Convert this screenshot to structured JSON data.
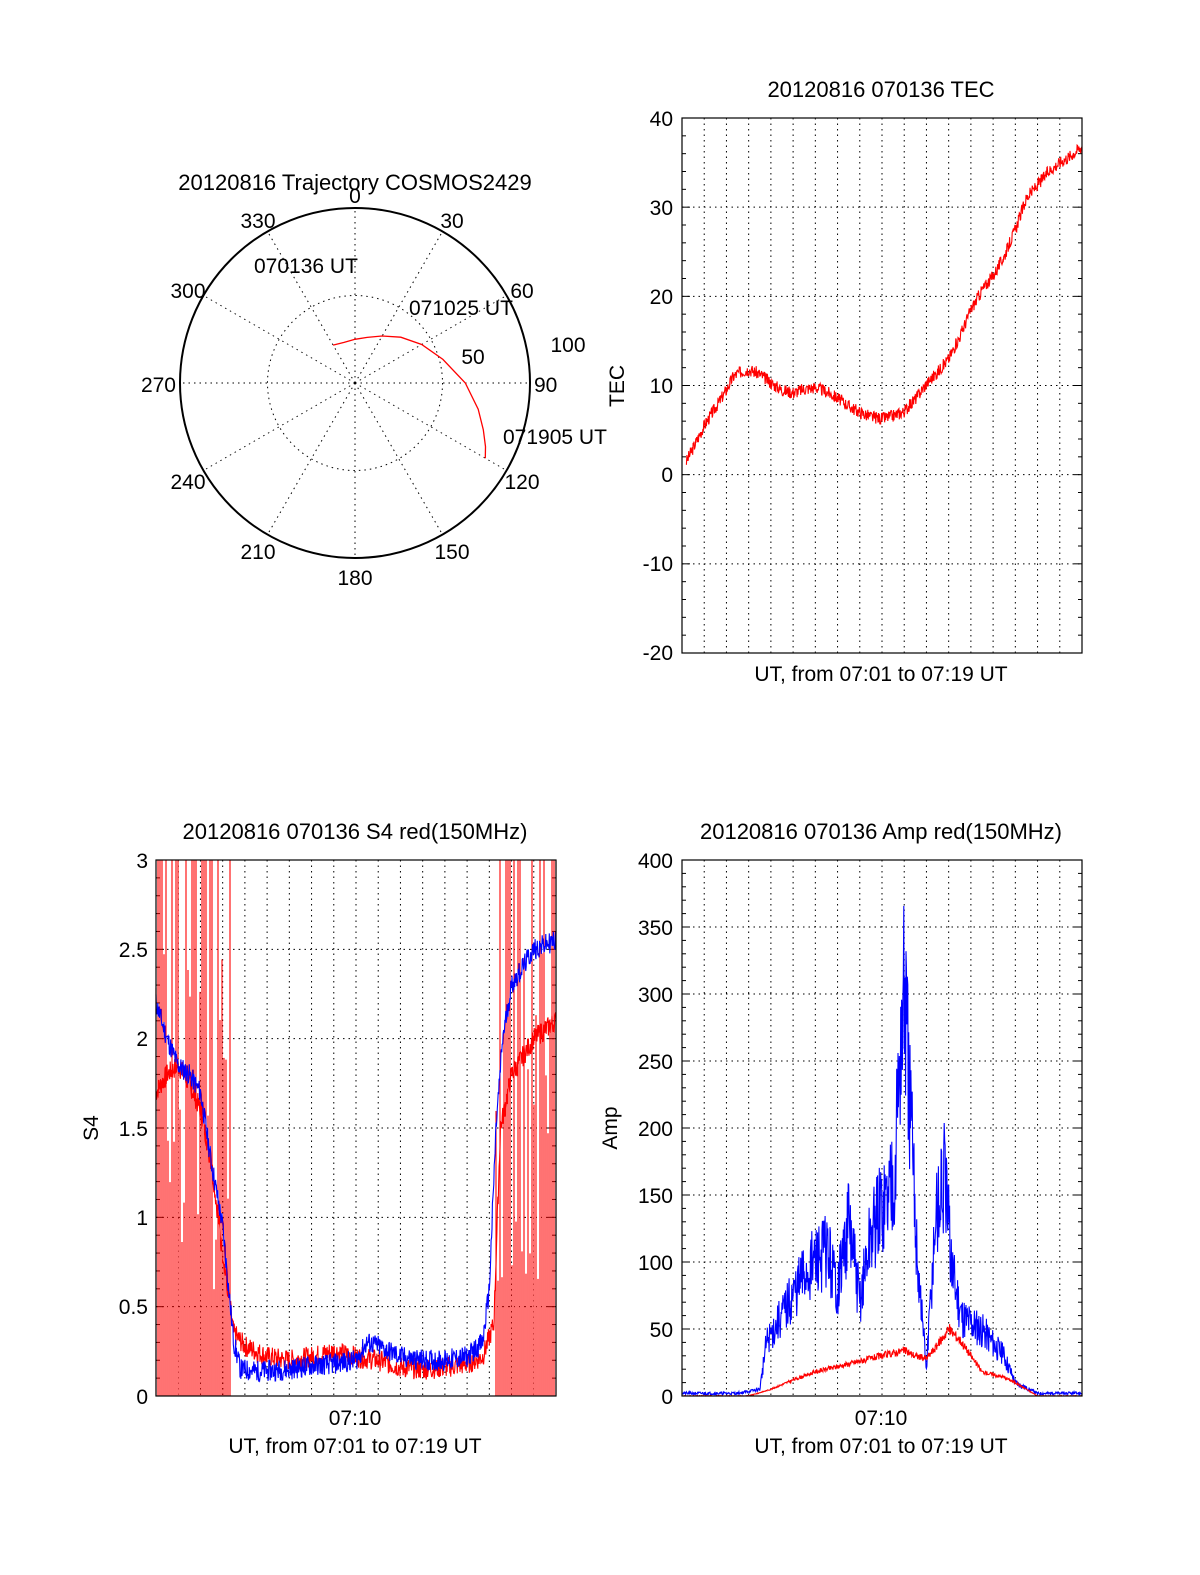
{
  "chart_data": [
    {
      "type": "polar",
      "title": "20120816 Trajectory COSMOS2429",
      "azimuth_labels": [
        "0",
        "30",
        "60",
        "90",
        "120",
        "150",
        "180",
        "210",
        "240",
        "270",
        "300",
        "330"
      ],
      "elevation_labels": [
        "50",
        "100"
      ],
      "time_labels": [
        "070136 UT",
        "071025 UT",
        "071905 UT"
      ],
      "series": [
        {
          "color": "#ff0000",
          "points": [
            [
              330,
              25
            ],
            [
              345,
              24
            ],
            [
              0,
              25
            ],
            [
              15,
              27
            ],
            [
              30,
              31
            ],
            [
              45,
              37
            ],
            [
              60,
              44
            ],
            [
              75,
              52
            ],
            [
              90,
              63
            ],
            [
              102,
              72
            ],
            [
              110,
              78
            ],
            [
              116,
              83
            ],
            [
              120,
              86
            ]
          ]
        }
      ],
      "colors": {
        "trajectory": "#ff0000"
      }
    },
    {
      "type": "line",
      "title": "20120816 070136 TEC",
      "xlabel": "UT, from 07:01 to 07:19 UT",
      "ylabel": "TEC",
      "ylim": [
        -20,
        40
      ],
      "yticks": [
        "40",
        "30",
        "20",
        "10",
        "0",
        "-10",
        "-20"
      ],
      "grid": true,
      "series": [
        {
          "color": "#ff0000",
          "x": [
            0.0,
            0.2,
            0.5,
            1.0,
            1.5,
            2.0,
            2.3,
            2.6,
            3.0,
            3.5,
            4.0,
            4.5,
            5.0,
            5.5,
            6.0,
            6.5,
            7.0,
            7.5,
            8.0,
            8.5,
            9.0,
            9.5,
            10.0,
            10.5,
            11.0,
            11.5,
            12.0,
            12.5,
            13.0,
            13.5,
            14.0,
            14.5,
            15.0,
            15.5,
            16.0,
            16.5,
            17.0,
            17.5,
            18.0
          ],
          "y": [
            0,
            1.5,
            3,
            5.5,
            7.5,
            9.5,
            11,
            11.5,
            11.8,
            11.3,
            10.3,
            9.5,
            9.2,
            9.6,
            9.8,
            9.3,
            8.6,
            7.7,
            7,
            6.5,
            6.3,
            6.6,
            7.1,
            8.5,
            10.2,
            11.5,
            13,
            15.5,
            18.5,
            20.7,
            22.3,
            24.5,
            27.5,
            31,
            32.5,
            34,
            35,
            35.8,
            36.8
          ],
          "noise": 0.7,
          "seed": 3
        }
      ]
    },
    {
      "type": "line",
      "title": "20120816 070136 S4 red(150MHz)",
      "xlabel": "UT, from 07:01 to 07:19 UT",
      "ylabel": "S4",
      "ylim": [
        0,
        3
      ],
      "yticks": [
        "3",
        "2.5",
        "2",
        "1.5",
        "1",
        "0.5",
        "0"
      ],
      "xtick_label": "07:10",
      "grid": true,
      "series": [
        {
          "color": "#ff0000",
          "x": [
            0,
            0.5,
            1.0,
            1.5,
            2.0,
            2.5,
            3.0,
            3.5,
            4.0,
            5.0,
            6.0,
            7.0,
            8.0,
            9.0,
            10.0,
            11.0,
            12.0,
            13.0,
            14.0,
            14.7,
            15.2,
            15.5,
            16.0,
            17.0,
            18.0
          ],
          "y": [
            1.7,
            1.8,
            1.85,
            1.75,
            1.6,
            1.3,
            0.8,
            0.35,
            0.28,
            0.22,
            0.2,
            0.22,
            0.25,
            0.22,
            0.2,
            0.16,
            0.15,
            0.16,
            0.18,
            0.22,
            0.4,
            1.5,
            1.8,
            2.0,
            2.1
          ],
          "noise": 0.06,
          "seed": 7,
          "spikes": [
            [
              0,
              3.4
            ],
            [
              15.3,
              18
            ]
          ]
        },
        {
          "color": "#0000ff",
          "x": [
            0,
            0.5,
            1.0,
            1.5,
            2.0,
            2.5,
            3.0,
            3.5,
            3.8,
            4.5,
            5.0,
            6.0,
            7.0,
            8.0,
            9.0,
            9.5,
            10.0,
            11.0,
            12.0,
            13.0,
            14.0,
            14.7,
            15.0,
            15.3,
            15.6,
            16.0,
            17.0,
            18.0
          ],
          "y": [
            2.2,
            2.0,
            1.85,
            1.8,
            1.7,
            1.3,
            0.95,
            0.3,
            0.15,
            0.14,
            0.14,
            0.15,
            0.17,
            0.18,
            0.2,
            0.3,
            0.28,
            0.22,
            0.2,
            0.2,
            0.22,
            0.3,
            0.6,
            1.5,
            2.0,
            2.3,
            2.5,
            2.55
          ],
          "noise": 0.06,
          "seed": 11
        }
      ]
    },
    {
      "type": "line",
      "title": "20120816 070136 Amp red(150MHz)",
      "xlabel": "UT, from 07:01 to 07:19 UT",
      "ylabel": "Amp",
      "ylim": [
        0,
        400
      ],
      "yticks": [
        "400",
        "350",
        "300",
        "250",
        "200",
        "150",
        "100",
        "50",
        "0"
      ],
      "xtick_label": "07:10",
      "grid": true,
      "series": [
        {
          "color": "#0000ff",
          "x": [
            0,
            2.5,
            3.5,
            3.8,
            4.5,
            5.5,
            6.5,
            7.0,
            7.5,
            8.0,
            8.5,
            9.0,
            9.3,
            9.6,
            9.8,
            10.0,
            10.3,
            10.6,
            11.0,
            11.4,
            11.8,
            12.2,
            12.6,
            13.0,
            13.5,
            14.0,
            14.5,
            15.0,
            16.0,
            18.0
          ],
          "y": [
            2,
            2,
            5,
            40,
            60,
            90,
            110,
            80,
            130,
            70,
            120,
            140,
            150,
            180,
            250,
            300,
            200,
            100,
            20,
            130,
            160,
            90,
            60,
            55,
            50,
            40,
            30,
            10,
            2,
            2
          ],
          "noise": 22,
          "seed": 21
        },
        {
          "color": "#ff0000",
          "x": [
            0,
            3.0,
            4.0,
            5.0,
            6.0,
            7.0,
            8.0,
            9.0,
            9.5,
            10.0,
            10.5,
            11.0,
            11.5,
            12.0,
            12.5,
            13.0,
            13.5,
            14.0,
            14.5,
            15.0,
            15.5,
            16.0,
            18.0
          ],
          "y": [
            0,
            0,
            5,
            12,
            18,
            22,
            26,
            30,
            32,
            34,
            30,
            28,
            38,
            50,
            42,
            30,
            18,
            16,
            14,
            10,
            5,
            0,
            0
          ],
          "noise": 7,
          "seed": 31
        }
      ]
    }
  ]
}
